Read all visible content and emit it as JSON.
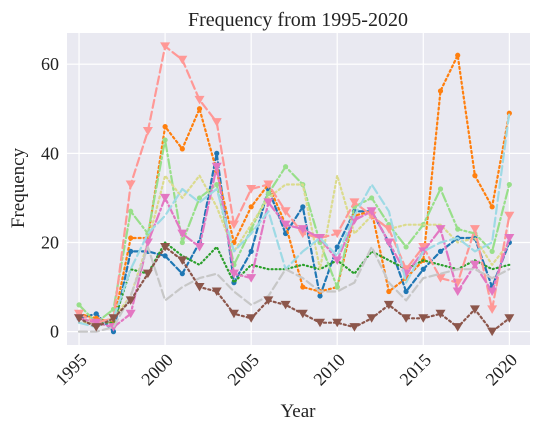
{
  "chart_data": {
    "type": "line",
    "title": "Frequency from 1995-2020",
    "xlabel": "Year",
    "ylabel": "Frequency",
    "xlim": [
      1994.3,
      2021.2
    ],
    "ylim": [
      -3,
      67
    ],
    "xticks": [
      1995,
      2000,
      2005,
      2010,
      2015,
      2020
    ],
    "yticks": [
      0,
      20,
      40,
      60
    ],
    "grid": true,
    "background": "#e9e9f1",
    "x": [
      1995,
      1996,
      1997,
      1998,
      1999,
      2000,
      2001,
      2002,
      2003,
      2004,
      2005,
      2006,
      2007,
      2008,
      2009,
      2010,
      2011,
      2012,
      2013,
      2014,
      2015,
      2016,
      2017,
      2018,
      2019,
      2020
    ],
    "series": [
      {
        "color": "#1f77b4",
        "dash": "5,3",
        "marker": "circle",
        "values": [
          3,
          4,
          0,
          18,
          18,
          17,
          13,
          20,
          40,
          11,
          18,
          32,
          22,
          28,
          8,
          19,
          27,
          27,
          20,
          9,
          14,
          18,
          21,
          21,
          10,
          20
        ]
      },
      {
        "color": "#ff7f0e",
        "dash": "2,3",
        "marker": "circle",
        "values": [
          4,
          3,
          2,
          21,
          21,
          46,
          41,
          50,
          36,
          20,
          28,
          33,
          24,
          10,
          9,
          10,
          26,
          27,
          9,
          12,
          16,
          54,
          62,
          35,
          28,
          49
        ]
      },
      {
        "color": "#2ca02c",
        "dash": "1,3",
        "marker": "none",
        "values": [
          3,
          2,
          2,
          14,
          13,
          20,
          17,
          15,
          19,
          11,
          15,
          14,
          14,
          15,
          14,
          16,
          13,
          18,
          16,
          14,
          16,
          15,
          14,
          16,
          14,
          15
        ]
      },
      {
        "color": "#98df8a",
        "dash": "9,3,2,3",
        "marker": "circle",
        "values": [
          6,
          2,
          5,
          27,
          22,
          43,
          20,
          30,
          33,
          15,
          23,
          31,
          37,
          33,
          20,
          10,
          28,
          30,
          24,
          19,
          24,
          32,
          23,
          22,
          18,
          33
        ]
      },
      {
        "color": "#dbdb8d",
        "dash": "2,3",
        "marker": "none",
        "values": [
          2,
          2,
          3,
          8,
          20,
          35,
          30,
          35,
          28,
          18,
          24,
          30,
          33,
          33,
          14,
          35,
          22,
          26,
          23,
          24,
          24,
          24,
          20,
          21,
          15,
          20
        ]
      },
      {
        "color": "#ff9896",
        "dash": "8,4",
        "marker": "triangle-down",
        "values": [
          4,
          2,
          3,
          33,
          45,
          64,
          61,
          52,
          47,
          24,
          32,
          33,
          27,
          22,
          21,
          22,
          29,
          26,
          23,
          14,
          19,
          12,
          11,
          23,
          5,
          26
        ]
      },
      {
        "color": "#e377c2",
        "dash": "9,3,2,3",
        "marker": "triangle-down",
        "values": [
          3,
          2,
          1,
          4,
          20,
          30,
          22,
          19,
          37,
          13,
          12,
          29,
          24,
          23,
          21,
          16,
          25,
          27,
          20,
          13,
          18,
          23,
          9,
          15,
          9,
          21
        ]
      },
      {
        "color": "#9edae5",
        "dash": "9,4",
        "marker": "none",
        "values": [
          2,
          1,
          3,
          14,
          22,
          26,
          32,
          29,
          32,
          18,
          22,
          27,
          14,
          18,
          21,
          17,
          26,
          33,
          27,
          11,
          18,
          20,
          21,
          18,
          20,
          49
        ]
      },
      {
        "color": "#c7c7c7",
        "dash": "8,4",
        "marker": "none",
        "values": [
          0,
          0,
          1,
          8,
          19,
          7,
          10,
          12,
          13,
          9,
          6,
          8,
          14,
          12,
          9,
          9,
          11,
          19,
          11,
          7,
          12,
          13,
          14,
          14,
          12,
          14
        ]
      },
      {
        "color": "#8c564b",
        "dash": "2,3",
        "marker": "triangle-down",
        "values": [
          3,
          1,
          3,
          7,
          13,
          19,
          16,
          10,
          9,
          4,
          3,
          7,
          6,
          4,
          2,
          2,
          1,
          3,
          6,
          3,
          3,
          4,
          1,
          5,
          0,
          3
        ]
      }
    ]
  }
}
